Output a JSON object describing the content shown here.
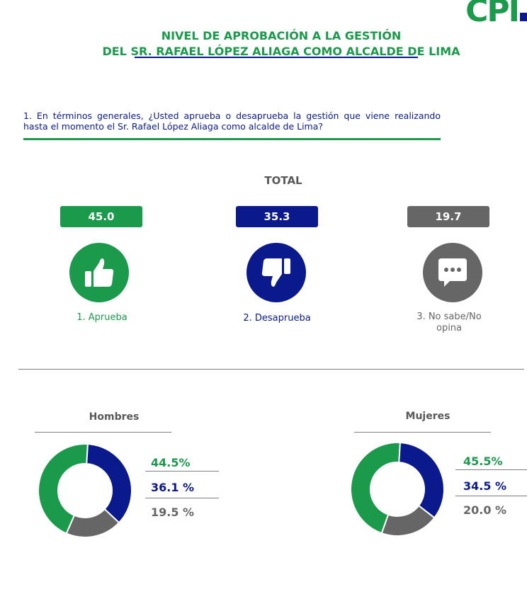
{
  "logo": {
    "text": "CPI"
  },
  "title": {
    "line1": "NIVEL DE APROBACIÓN A LA GESTIÓN",
    "line2": "DEL SR. RAFAEL LÓPEZ ALIAGA COMO ALCALDE DE LIMA"
  },
  "question": "1. En términos generales, ¿Usted aprueba o desaprueba la gestión que viene realizando hasta el momento el Sr. Rafael López Aliaga como alcalde de Lima?",
  "total": {
    "label": "TOTAL",
    "items": [
      {
        "value": "45.0",
        "label": "1. Aprueba",
        "color": "#1a9a4a",
        "icon": "thumbs-up-icon"
      },
      {
        "value": "35.3",
        "label": "2. Desaprueba",
        "color": "#0a1a8c",
        "icon": "thumbs-down-icon"
      },
      {
        "value": "19.7",
        "label": "3. No sabe/No opina",
        "color": "#666666",
        "icon": "chat-bubble-icon"
      }
    ]
  },
  "colors": {
    "aprueba": "#1a9a4a",
    "desaprueba": "#0a1a8c",
    "nosabe": "#666666"
  },
  "chart_data": [
    {
      "type": "bar",
      "title": "TOTAL",
      "categories": [
        "1. Aprueba",
        "2. Desaprueba",
        "3. No sabe/No opina"
      ],
      "values": [
        45.0,
        35.3,
        19.7
      ]
    },
    {
      "type": "pie",
      "title": "Hombres",
      "categories": [
        "Aprueba",
        "Desaprueba",
        "No sabe/No opina"
      ],
      "values": [
        44.5,
        36.1,
        19.5
      ],
      "labels": [
        "44.5%",
        "36.1 %",
        "19.5 %"
      ]
    },
    {
      "type": "pie",
      "title": "Mujeres",
      "categories": [
        "Aprueba",
        "Desaprueba",
        "No sabe/No opina"
      ],
      "values": [
        45.5,
        34.5,
        20.0
      ],
      "labels": [
        "45.5%",
        "34.5 %",
        "20.0 %"
      ]
    }
  ]
}
